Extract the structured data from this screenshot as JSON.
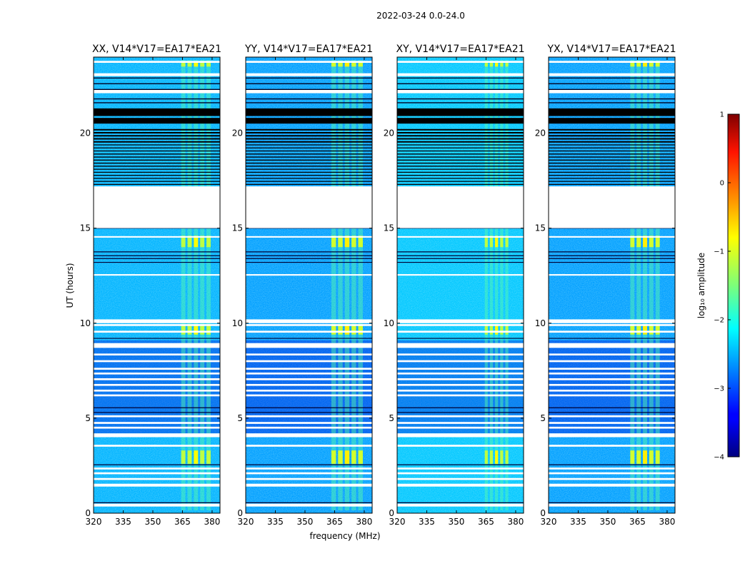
{
  "chart_data": {
    "type": "heatmap",
    "title": "2022-03-24 0.0-24.0",
    "ylabel": "UT (hours)",
    "xlabel": "frequency (MHz)",
    "xlim": [
      320,
      384
    ],
    "ylim": [
      0,
      24
    ],
    "xticks": [
      320,
      335,
      350,
      365,
      380
    ],
    "yticks": [
      0,
      5,
      10,
      15,
      20
    ],
    "colorbar": {
      "label": "log₁₀ amplitude",
      "range": [
        -4,
        1
      ],
      "ticks": [
        1,
        0,
        -1,
        -2,
        -3,
        -4
      ],
      "tick_labels": [
        "1",
        "0",
        "−1",
        "−2",
        "−3",
        "−4"
      ],
      "colormap": "jet"
    },
    "panels": [
      {
        "title": "XX, V14*V17=EA17*EA21",
        "baseline_level": -2.5,
        "rfi_band_mhz": [
          364,
          380
        ],
        "rfi_peak_level": -0.9
      },
      {
        "title": "YY, V14*V17=EA17*EA21",
        "baseline_level": -2.6,
        "rfi_band_mhz": [
          363,
          380
        ],
        "rfi_peak_level": -0.8
      },
      {
        "title": "XY, V14*V17=EA17*EA21",
        "baseline_level": -2.4,
        "rfi_band_mhz": [
          364,
          377
        ],
        "rfi_peak_level": -0.9
      },
      {
        "title": "YX, V14*V17=EA17*EA21",
        "baseline_level": -2.6,
        "rfi_band_mhz": [
          361,
          377
        ],
        "rfi_peak_level": -0.8
      }
    ],
    "no_data_hours": [
      [
        15.0,
        17.2
      ]
    ],
    "flagged_hours": [
      [
        0.35,
        0.5
      ],
      [
        1.4,
        1.55
      ],
      [
        1.75,
        1.85
      ],
      [
        2.05,
        2.15
      ],
      [
        2.3,
        2.4
      ],
      [
        3.5,
        3.6
      ],
      [
        4.0,
        4.2
      ],
      [
        4.45,
        4.55
      ],
      [
        4.7,
        4.8
      ],
      [
        5.05,
        5.15
      ],
      [
        6.15,
        6.25
      ],
      [
        6.4,
        6.5
      ],
      [
        6.7,
        6.8
      ],
      [
        7.0,
        7.1
      ],
      [
        7.3,
        7.4
      ],
      [
        7.55,
        7.65
      ],
      [
        7.95,
        8.05
      ],
      [
        8.3,
        8.4
      ],
      [
        8.7,
        8.95
      ],
      [
        9.5,
        9.6
      ],
      [
        9.85,
        9.95
      ],
      [
        10.0,
        10.2
      ],
      [
        12.5,
        12.58
      ],
      [
        14.5,
        14.58
      ],
      [
        22.1,
        22.3
      ],
      [
        23.0,
        23.15
      ],
      [
        23.7,
        23.8
      ]
    ],
    "dark_lines_hours": [
      0.55,
      2.55,
      5.3,
      5.55,
      9.2,
      13.2,
      13.4,
      13.55,
      13.75,
      15.0
    ]
  }
}
